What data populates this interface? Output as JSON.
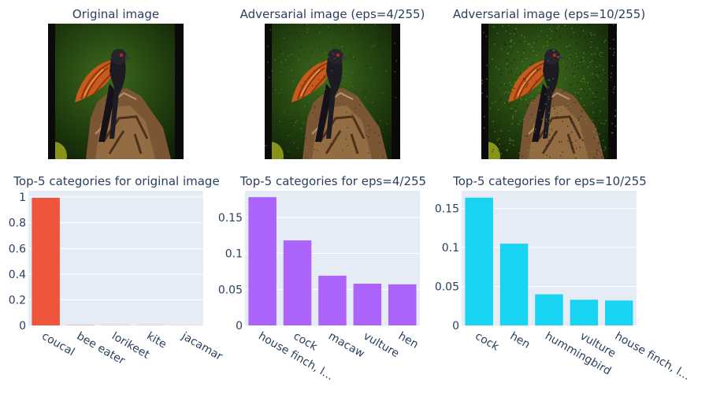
{
  "images": [
    {
      "title": "Original image",
      "noise": 0
    },
    {
      "title": "Adversarial image (eps=4/255)",
      "noise": 0.35
    },
    {
      "title": "Adversarial image (eps=10/255)",
      "noise": 0.8
    }
  ],
  "chart_data": [
    {
      "type": "bar",
      "title": "Top-5 categories for original image",
      "categories": [
        "coucal",
        "bee eater",
        "lorikeet",
        "kite",
        "jacamar"
      ],
      "values": [
        0.995,
        0.002,
        0.001,
        0.001,
        0.0005
      ],
      "ylim": [
        0,
        1.05
      ],
      "yticks": [
        0,
        0.2,
        0.4,
        0.6,
        0.8,
        1
      ],
      "ytick_labels": [
        "0",
        "0.2",
        "0.4",
        "0.6",
        "0.8",
        "1"
      ],
      "color": "#EF553B",
      "grid": true
    },
    {
      "type": "bar",
      "title": "Top-5 categories for eps=4/255",
      "categories": [
        "house finch, l...",
        "cock",
        "macaw",
        "vulture",
        "hen"
      ],
      "values": [
        0.178,
        0.118,
        0.069,
        0.058,
        0.057
      ],
      "ylim": [
        0,
        0.187
      ],
      "yticks": [
        0,
        0.05,
        0.1,
        0.15
      ],
      "ytick_labels": [
        "0",
        "0.05",
        "0.1",
        "0.15"
      ],
      "color": "#AB63FA",
      "grid": true
    },
    {
      "type": "bar",
      "title": "Top-5 categories for eps=10/255",
      "categories": [
        "cock",
        "hen",
        "hummingbird",
        "vulture",
        "house finch, l..."
      ],
      "values": [
        0.164,
        0.105,
        0.04,
        0.033,
        0.032
      ],
      "ylim": [
        0,
        0.173
      ],
      "yticks": [
        0,
        0.05,
        0.1,
        0.15
      ],
      "ytick_labels": [
        "0",
        "0.05",
        "0.1",
        "0.15"
      ],
      "color": "#19D3F3",
      "grid": true
    }
  ]
}
